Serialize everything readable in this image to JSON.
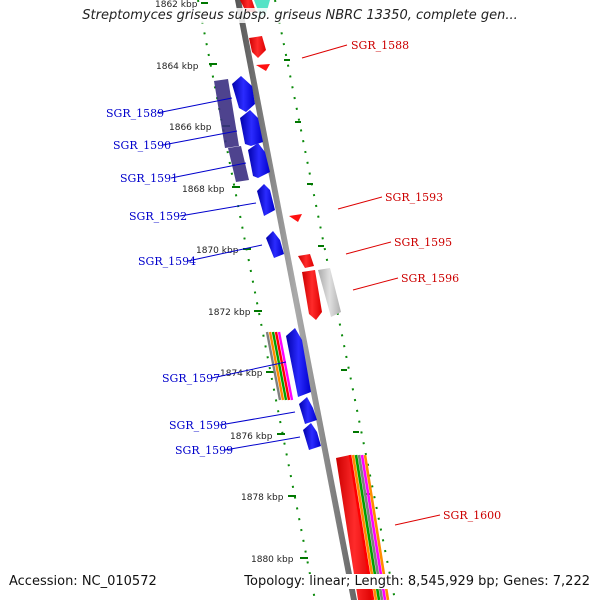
{
  "title": "Streptomyces griseus subsp. griseus NBRC 13350, complete gen...",
  "footer": {
    "accession": "Accession: NC_010572",
    "topology": "Topology: linear; Length: 8,545,929 bp; Genes: 7,222"
  },
  "colors": {
    "forward_gene": "#0000ff",
    "reverse_gene": "#ff0000",
    "backbone": "#808080",
    "tick": "#008000",
    "rrna_stripes": [
      "#ff0000",
      "#ff8c00",
      "#00a000",
      "#808080",
      "#ff00ff"
    ]
  },
  "scale": {
    "unit": "kbp",
    "labels": [
      "1862 kbp",
      "1864 kbp",
      "1866 kbp",
      "1868 kbp",
      "1870 kbp",
      "1872 kbp",
      "1874 kbp",
      "1876 kbp",
      "1878 kbp",
      "1880 kbp"
    ]
  },
  "genes": [
    {
      "name": "SGR_1588",
      "strand": "reverse"
    },
    {
      "name": "SGR_1589",
      "strand": "forward"
    },
    {
      "name": "SGR_1590",
      "strand": "forward"
    },
    {
      "name": "SGR_1591",
      "strand": "forward"
    },
    {
      "name": "SGR_1592",
      "strand": "forward"
    },
    {
      "name": "SGR_1593",
      "strand": "reverse"
    },
    {
      "name": "SGR_1594",
      "strand": "forward"
    },
    {
      "name": "SGR_1595",
      "strand": "reverse"
    },
    {
      "name": "SGR_1596",
      "strand": "reverse"
    },
    {
      "name": "SGR_1597",
      "strand": "forward"
    },
    {
      "name": "SGR_1598",
      "strand": "forward"
    },
    {
      "name": "SGR_1599",
      "strand": "forward"
    },
    {
      "name": "SGR_1600",
      "strand": "reverse"
    }
  ]
}
